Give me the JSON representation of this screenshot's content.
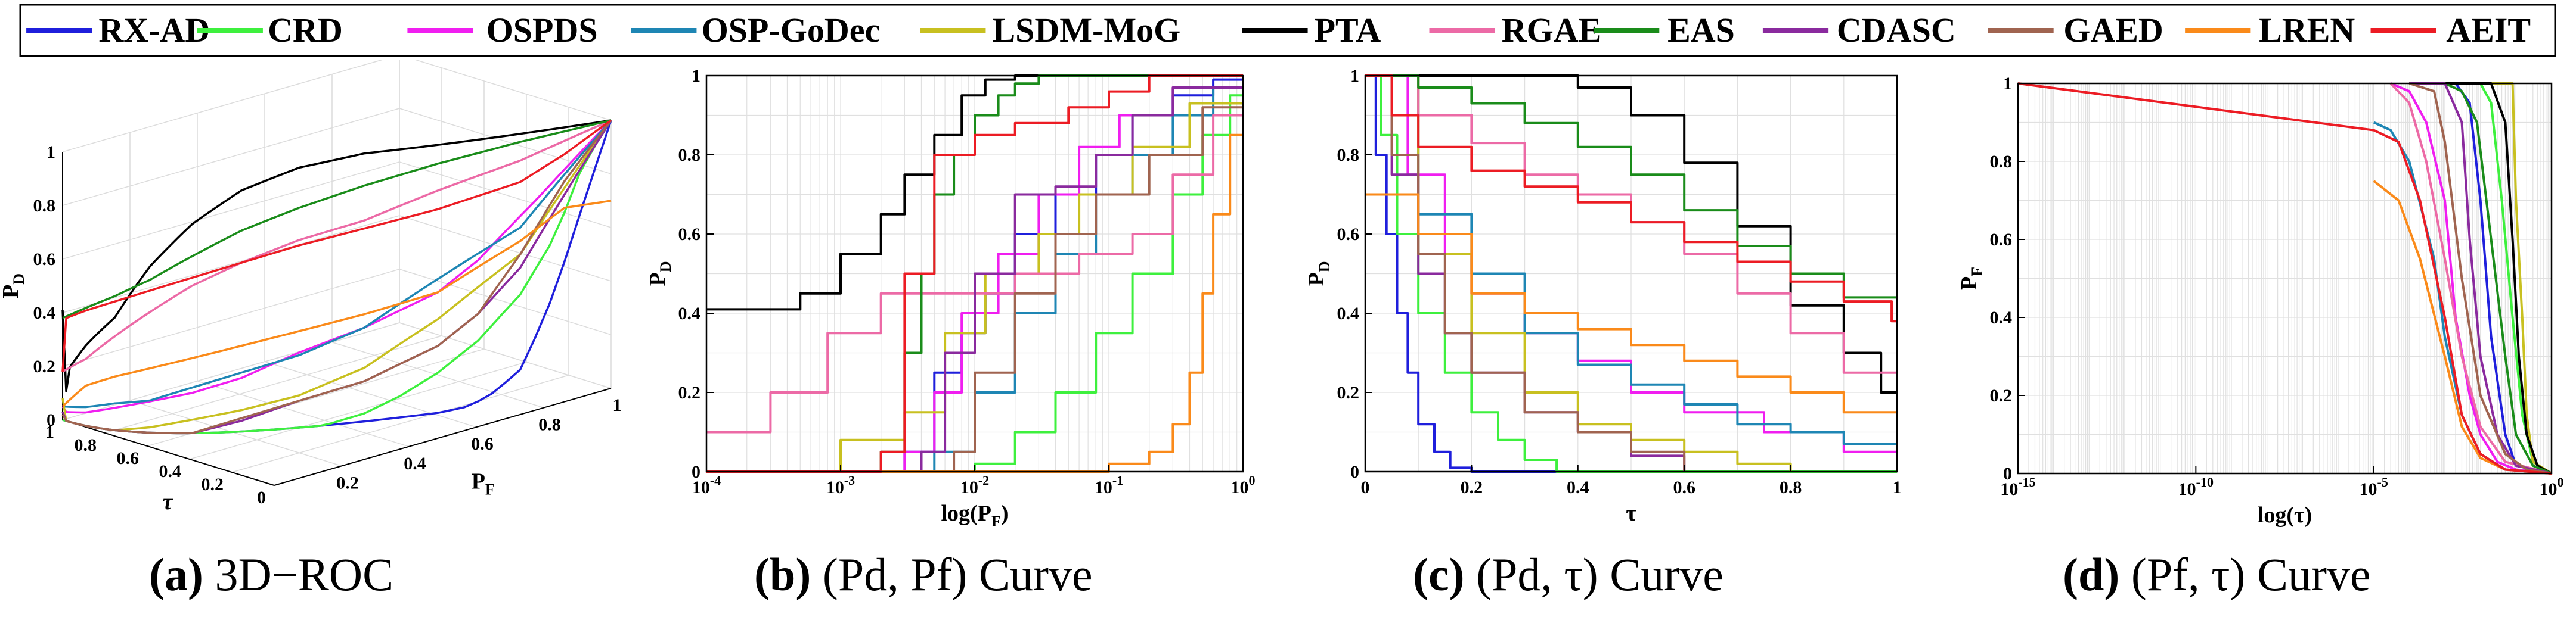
{
  "legend": [
    {
      "name": "RX-AD",
      "color": "#1f1fdc"
    },
    {
      "name": "CRD",
      "color": "#3ef03e"
    },
    {
      "name": "OSPDS",
      "color": "#f01ef0"
    },
    {
      "name": "OSP-GoDec",
      "color": "#1e86b4"
    },
    {
      "name": "LSDM-MoG",
      "color": "#c8c020"
    },
    {
      "name": "PTA",
      "color": "#000000"
    },
    {
      "name": "RGAE",
      "color": "#ec6aa6"
    },
    {
      "name": "EAS",
      "color": "#1a8c1a"
    },
    {
      "name": "CDASC",
      "color": "#8a2a9e"
    },
    {
      "name": "GAED",
      "color": "#a06450"
    },
    {
      "name": "LREN",
      "color": "#fa8a1a"
    },
    {
      "name": "AEIT",
      "color": "#ec1c24"
    }
  ],
  "captions": {
    "a": {
      "letter": "(a)",
      "text": "3D−ROC"
    },
    "b": {
      "letter": "(b)",
      "text": "(Pd, Pf) Curve"
    },
    "c": {
      "letter": "(c)",
      "text": "(Pd, τ) Curve"
    },
    "d": {
      "letter": "(d)",
      "text": "(Pf, τ) Curve"
    }
  },
  "chart_data": [
    {
      "id": "a",
      "type": "line",
      "title": "3D-ROC",
      "xlabel": "PF",
      "ylabel": "τ",
      "zlabel": "PD",
      "x_ticks": [
        "0.2",
        "0.4",
        "0.6",
        "0.8",
        "1"
      ],
      "y_ticks": [
        "0",
        "0.2",
        "0.4",
        "0.6",
        "0.8",
        "1"
      ],
      "z_ticks": [
        "0",
        "0.2",
        "0.4",
        "0.6",
        "0.8",
        "1"
      ],
      "series": [
        {
          "name": "RX-AD",
          "z_at_tau1": 0.0
        },
        {
          "name": "CRD",
          "z_at_tau1": 0.0
        },
        {
          "name": "OSPDS",
          "z_at_tau1": 0.05
        },
        {
          "name": "OSP-GoDec",
          "z_at_tau1": 0.02
        },
        {
          "name": "LSDM-MoG",
          "z_at_tau1": 0.08
        },
        {
          "name": "PTA",
          "z_at_tau1": 0.41
        },
        {
          "name": "RGAE",
          "z_at_tau1": 0.1
        },
        {
          "name": "EAS",
          "z_at_tau1": 0.3
        },
        {
          "name": "CDASC",
          "z_at_tau1": 0.03
        },
        {
          "name": "GAED",
          "z_at_tau1": 0.02
        },
        {
          "name": "LREN",
          "z_at_tau1": 0.0
        },
        {
          "name": "AEIT",
          "z_at_tau1": 0.18
        }
      ]
    },
    {
      "id": "b",
      "type": "line",
      "title": "(Pd, Pf) Curve",
      "xlabel": "log(PF)",
      "ylabel": "PD",
      "xscale": "log",
      "xlim": [
        0.0001,
        1
      ],
      "ylim": [
        0,
        1
      ],
      "x_ticks": [
        "10-4",
        "10-3",
        "10-2",
        "10-1",
        "100"
      ],
      "y_ticks": [
        "0",
        "0.2",
        "0.4",
        "0.6",
        "0.8",
        "1"
      ],
      "series": [
        {
          "name": "RX-AD",
          "x": [
            0.0001,
            0.003,
            0.005,
            0.008,
            0.012,
            0.02,
            0.04,
            0.08,
            0.15,
            0.3,
            0.6,
            1
          ],
          "y": [
            0,
            0.05,
            0.25,
            0.35,
            0.45,
            0.6,
            0.7,
            0.8,
            0.9,
            0.95,
            0.99,
            1
          ]
        },
        {
          "name": "CRD",
          "x": [
            0.0001,
            0.01,
            0.02,
            0.04,
            0.08,
            0.15,
            0.3,
            0.5,
            0.8,
            1
          ],
          "y": [
            0,
            0.02,
            0.1,
            0.2,
            0.35,
            0.5,
            0.7,
            0.85,
            0.95,
            1
          ]
        },
        {
          "name": "OSPDS",
          "x": [
            0.0001,
            0.003,
            0.005,
            0.008,
            0.015,
            0.03,
            0.06,
            0.12,
            0.3,
            1
          ],
          "y": [
            0,
            0.05,
            0.2,
            0.4,
            0.55,
            0.7,
            0.82,
            0.9,
            0.97,
            1
          ]
        },
        {
          "name": "OSP-GoDec",
          "x": [
            0.0001,
            0.005,
            0.01,
            0.02,
            0.04,
            0.08,
            0.15,
            0.3,
            0.6,
            1
          ],
          "y": [
            0,
            0.05,
            0.2,
            0.4,
            0.55,
            0.7,
            0.8,
            0.9,
            0.97,
            1
          ]
        },
        {
          "name": "LSDM-MoG",
          "x": [
            0.0001,
            0.001,
            0.003,
            0.006,
            0.012,
            0.03,
            0.06,
            0.15,
            0.4,
            1
          ],
          "y": [
            0,
            0.08,
            0.15,
            0.35,
            0.5,
            0.6,
            0.7,
            0.82,
            0.93,
            1
          ]
        },
        {
          "name": "PTA",
          "x": [
            0.0001,
            0.0005,
            0.001,
            0.002,
            0.003,
            0.005,
            0.008,
            0.012,
            0.02,
            1
          ],
          "y": [
            0.41,
            0.45,
            0.55,
            0.65,
            0.75,
            0.85,
            0.95,
            0.99,
            1,
            1
          ]
        },
        {
          "name": "RGAE",
          "x": [
            0.0001,
            0.0003,
            0.0008,
            0.002,
            0.005,
            0.02,
            0.06,
            0.15,
            0.3,
            0.6,
            1
          ],
          "y": [
            0.1,
            0.2,
            0.35,
            0.45,
            0.45,
            0.5,
            0.55,
            0.6,
            0.75,
            0.9,
            1
          ]
        },
        {
          "name": "EAS",
          "x": [
            0.0001,
            0.002,
            0.003,
            0.004,
            0.005,
            0.007,
            0.01,
            0.015,
            0.02,
            0.03,
            1
          ],
          "y": [
            0,
            0.05,
            0.3,
            0.5,
            0.7,
            0.8,
            0.9,
            0.95,
            0.98,
            1,
            1
          ]
        },
        {
          "name": "CDASC",
          "x": [
            0.0001,
            0.004,
            0.006,
            0.01,
            0.02,
            0.04,
            0.08,
            0.15,
            0.3,
            1
          ],
          "y": [
            0,
            0.05,
            0.3,
            0.5,
            0.7,
            0.72,
            0.8,
            0.9,
            0.97,
            1
          ]
        },
        {
          "name": "GAED",
          "x": [
            0.0001,
            0.007,
            0.01,
            0.02,
            0.04,
            0.08,
            0.2,
            0.5,
            1
          ],
          "y": [
            0,
            0.05,
            0.25,
            0.45,
            0.6,
            0.7,
            0.8,
            0.92,
            1
          ]
        },
        {
          "name": "LREN",
          "x": [
            0.0001,
            0.1,
            0.2,
            0.3,
            0.4,
            0.5,
            0.6,
            0.8,
            1
          ],
          "y": [
            0,
            0.02,
            0.05,
            0.12,
            0.25,
            0.45,
            0.65,
            0.85,
            1
          ]
        },
        {
          "name": "AEIT",
          "x": [
            0.0001,
            0.002,
            0.003,
            0.005,
            0.01,
            0.02,
            0.05,
            0.1,
            0.2,
            1
          ],
          "y": [
            0,
            0.05,
            0.5,
            0.8,
            0.85,
            0.88,
            0.92,
            0.96,
            1,
            1
          ]
        }
      ]
    },
    {
      "id": "c",
      "type": "line",
      "title": "(Pd, τ) Curve",
      "xlabel": "τ",
      "ylabel": "PD",
      "xlim": [
        0,
        1
      ],
      "ylim": [
        0,
        1
      ],
      "x_ticks": [
        "0",
        "0.2",
        "0.4",
        "0.6",
        "0.8",
        "1"
      ],
      "y_ticks": [
        "0",
        "0.2",
        "0.4",
        "0.6",
        "0.8",
        "1"
      ],
      "series": [
        {
          "name": "RX-AD",
          "x": [
            0,
            0.02,
            0.04,
            0.06,
            0.08,
            0.1,
            0.13,
            0.16,
            0.2,
            1
          ],
          "y": [
            1,
            0.8,
            0.6,
            0.4,
            0.25,
            0.12,
            0.05,
            0.01,
            0,
            0
          ]
        },
        {
          "name": "CRD",
          "x": [
            0,
            0.03,
            0.06,
            0.1,
            0.15,
            0.2,
            0.25,
            0.3,
            0.36,
            1
          ],
          "y": [
            1,
            0.85,
            0.6,
            0.4,
            0.25,
            0.15,
            0.08,
            0.03,
            0,
            0
          ]
        },
        {
          "name": "OSPDS",
          "x": [
            0,
            0.08,
            0.15,
            0.2,
            0.3,
            0.4,
            0.5,
            0.6,
            0.75,
            0.9,
            1
          ],
          "y": [
            1,
            0.75,
            0.55,
            0.45,
            0.35,
            0.28,
            0.2,
            0.15,
            0.1,
            0.05,
            0.03
          ]
        },
        {
          "name": "OSP-GoDec",
          "x": [
            0,
            0.1,
            0.2,
            0.3,
            0.4,
            0.5,
            0.6,
            0.7,
            0.8,
            0.9,
            1
          ],
          "y": [
            1,
            0.65,
            0.5,
            0.35,
            0.27,
            0.22,
            0.17,
            0.12,
            0.1,
            0.07,
            0.05
          ]
        },
        {
          "name": "LSDM-MoG",
          "x": [
            0,
            0.1,
            0.2,
            0.3,
            0.4,
            0.5,
            0.6,
            0.7,
            0.8
          ],
          "y": [
            1,
            0.55,
            0.35,
            0.2,
            0.12,
            0.08,
            0.05,
            0.02,
            0
          ]
        },
        {
          "name": "PTA",
          "x": [
            0,
            0.1,
            0.2,
            0.3,
            0.4,
            0.5,
            0.6,
            0.7,
            0.8,
            0.9,
            0.97,
            1
          ],
          "y": [
            1,
            1,
            1,
            1,
            0.97,
            0.9,
            0.78,
            0.62,
            0.42,
            0.3,
            0.2,
            0
          ]
        },
        {
          "name": "RGAE",
          "x": [
            0,
            0.1,
            0.2,
            0.3,
            0.4,
            0.5,
            0.6,
            0.7,
            0.8,
            0.9,
            1
          ],
          "y": [
            1,
            0.9,
            0.83,
            0.75,
            0.7,
            0.63,
            0.55,
            0.45,
            0.35,
            0.25,
            0.18
          ]
        },
        {
          "name": "EAS",
          "x": [
            0,
            0.1,
            0.2,
            0.3,
            0.4,
            0.5,
            0.6,
            0.7,
            0.8,
            0.9,
            1
          ],
          "y": [
            1,
            0.97,
            0.93,
            0.88,
            0.82,
            0.75,
            0.66,
            0.57,
            0.5,
            0.44,
            0.38
          ]
        },
        {
          "name": "CDASC",
          "x": [
            0,
            0.05,
            0.1,
            0.15,
            0.2,
            0.3,
            0.4,
            0.5,
            0.6
          ],
          "y": [
            1,
            0.75,
            0.5,
            0.35,
            0.25,
            0.15,
            0.1,
            0.04,
            0
          ]
        },
        {
          "name": "GAED",
          "x": [
            0,
            0.05,
            0.1,
            0.15,
            0.2,
            0.3,
            0.4,
            0.5,
            0.6
          ],
          "y": [
            1,
            0.8,
            0.55,
            0.35,
            0.25,
            0.15,
            0.1,
            0.05,
            0
          ]
        },
        {
          "name": "LREN",
          "x": [
            0,
            0.05,
            0.1,
            0.2,
            0.3,
            0.4,
            0.5,
            0.6,
            0.7,
            0.8,
            0.9,
            1
          ],
          "y": [
            0.7,
            0.7,
            0.6,
            0.45,
            0.4,
            0.36,
            0.32,
            0.28,
            0.24,
            0.2,
            0.15,
            0.05
          ]
        },
        {
          "name": "AEIT",
          "x": [
            0,
            0.05,
            0.1,
            0.2,
            0.3,
            0.4,
            0.5,
            0.6,
            0.7,
            0.8,
            0.9,
            0.99,
            1
          ],
          "y": [
            1,
            0.9,
            0.82,
            0.76,
            0.72,
            0.68,
            0.63,
            0.58,
            0.53,
            0.48,
            0.43,
            0.38,
            0
          ]
        }
      ]
    },
    {
      "id": "d",
      "type": "line",
      "title": "(Pf, τ) Curve",
      "xlabel": "log(τ)",
      "ylabel": "PF",
      "xscale": "log",
      "xlim": [
        1e-15,
        1
      ],
      "ylim": [
        0,
        1
      ],
      "x_ticks": [
        "10-15",
        "10-10",
        "10-5",
        "100"
      ],
      "y_ticks": [
        "0",
        "0.2",
        "0.4",
        "0.6",
        "0.8",
        "1"
      ],
      "series": [
        {
          "name": "RX-AD",
          "x": [
            0.0001,
            0.002,
            0.005,
            0.01,
            0.02,
            0.05,
            0.1,
            1
          ],
          "y": [
            1,
            1,
            0.95,
            0.7,
            0.35,
            0.1,
            0.02,
            0
          ]
        },
        {
          "name": "CRD",
          "x": [
            0.0001,
            0.01,
            0.02,
            0.04,
            0.08,
            0.15,
            0.3,
            1
          ],
          "y": [
            1,
            1,
            0.95,
            0.7,
            0.4,
            0.15,
            0.03,
            0
          ]
        },
        {
          "name": "OSPDS",
          "x": [
            3e-05,
            0.0001,
            0.0003,
            0.001,
            0.002,
            0.005,
            0.01,
            0.03,
            0.1,
            1
          ],
          "y": [
            1,
            0.98,
            0.9,
            0.7,
            0.4,
            0.2,
            0.1,
            0.03,
            0.01,
            0
          ]
        },
        {
          "name": "OSP-GoDec",
          "x": [
            1e-05,
            3e-05,
            0.0001,
            0.0005,
            0.001,
            0.003,
            0.01,
            0.05,
            1
          ],
          "y": [
            0.9,
            0.88,
            0.8,
            0.55,
            0.35,
            0.15,
            0.05,
            0.01,
            0
          ]
        },
        {
          "name": "LSDM-MoG",
          "x": [
            0.0001,
            0.05,
            0.08,
            0.1,
            0.15,
            0.2,
            0.3,
            1
          ],
          "y": [
            1,
            1,
            1,
            0.7,
            0.4,
            0.15,
            0.03,
            0
          ]
        },
        {
          "name": "PTA",
          "x": [
            0.0001,
            0.02,
            0.05,
            0.08,
            0.12,
            0.2,
            0.4,
            1
          ],
          "y": [
            1,
            1,
            0.9,
            0.6,
            0.3,
            0.1,
            0.02,
            0
          ]
        },
        {
          "name": "RGAE",
          "x": [
            3e-05,
            0.0001,
            0.0003,
            0.001,
            0.003,
            0.01,
            0.05,
            1
          ],
          "y": [
            1,
            0.95,
            0.8,
            0.55,
            0.3,
            0.12,
            0.03,
            0
          ]
        },
        {
          "name": "EAS",
          "x": [
            0.0001,
            0.001,
            0.003,
            0.008,
            0.02,
            0.05,
            0.1,
            0.3,
            1
          ],
          "y": [
            1,
            1,
            0.98,
            0.9,
            0.6,
            0.3,
            0.1,
            0.02,
            0
          ]
        },
        {
          "name": "CDASC",
          "x": [
            0.0001,
            0.001,
            0.003,
            0.005,
            0.01,
            0.03,
            0.1,
            1
          ],
          "y": [
            1,
            1,
            0.9,
            0.6,
            0.3,
            0.1,
            0.02,
            0
          ]
        },
        {
          "name": "GAED",
          "x": [
            0.0001,
            0.0005,
            0.001,
            0.003,
            0.01,
            0.05,
            0.2,
            1
          ],
          "y": [
            1,
            0.98,
            0.85,
            0.5,
            0.2,
            0.05,
            0.01,
            0
          ]
        },
        {
          "name": "LREN",
          "x": [
            1e-05,
            5e-05,
            0.0002,
            0.001,
            0.003,
            0.01,
            0.05,
            1
          ],
          "y": [
            0.75,
            0.7,
            0.55,
            0.3,
            0.12,
            0.04,
            0.01,
            0
          ]
        },
        {
          "name": "AEIT",
          "x": [
            1e-15,
            1e-05,
            5e-05,
            0.0002,
            0.001,
            0.003,
            0.01,
            0.05,
            1
          ],
          "y": [
            1,
            0.88,
            0.85,
            0.7,
            0.4,
            0.15,
            0.05,
            0.01,
            0
          ]
        }
      ]
    }
  ]
}
